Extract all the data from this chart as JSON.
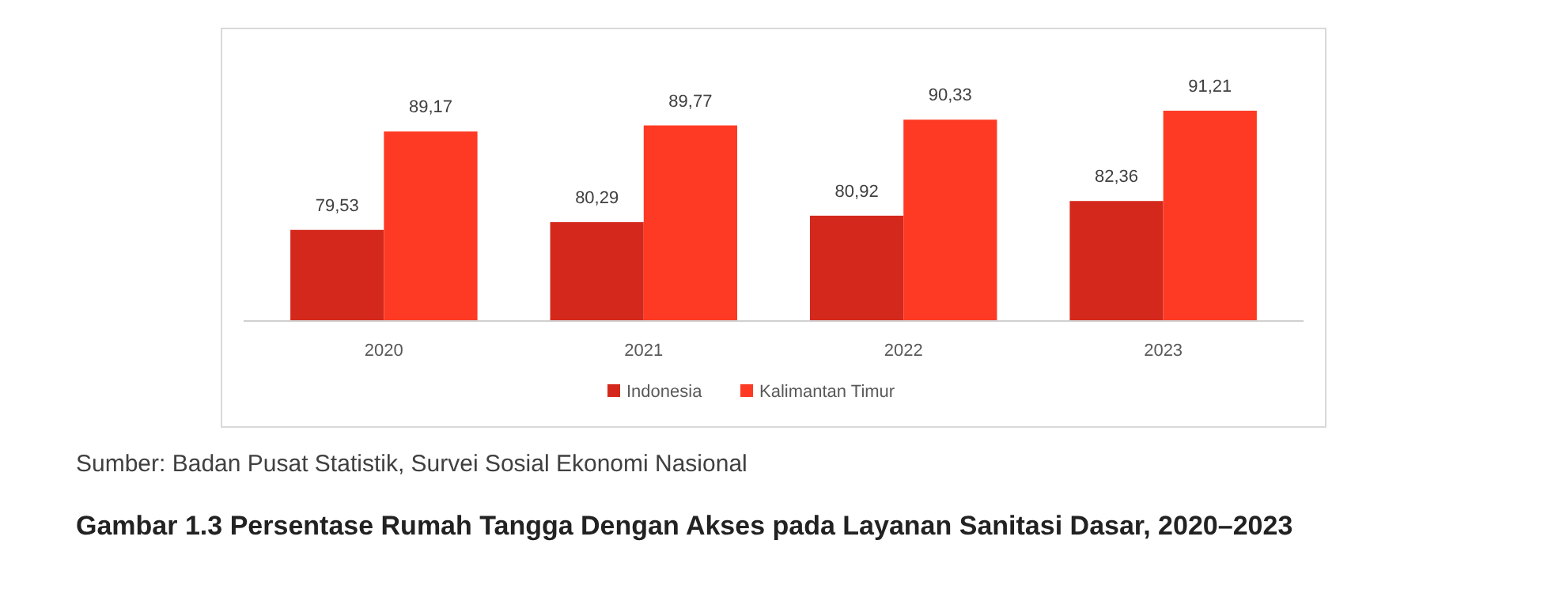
{
  "chart_data": {
    "type": "bar",
    "title": "Gambar 1.3   Persentase Rumah Tangga Dengan Akses pada Layanan Sanitasi Dasar, 2020–2023",
    "categories": [
      "2020",
      "2021",
      "2022",
      "2023"
    ],
    "series": [
      {
        "name": "Indonesia",
        "color": "#d4281c",
        "values": [
          79.53,
          80.29,
          80.92,
          82.36
        ],
        "value_labels": [
          "79,53",
          "80,29",
          "80,92",
          "82,36"
        ]
      },
      {
        "name": "Kalimantan Timur",
        "color": "#ff3a24",
        "values": [
          89.17,
          89.77,
          90.33,
          91.21
        ],
        "value_labels": [
          "89,17",
          "89,77",
          "90,33",
          "91,21"
        ]
      }
    ],
    "ylim": [
      70.6,
      91.21
    ],
    "tick_labels": "x",
    "legend": "bottom",
    "annotations": [
      "Sumber: Badan Pusat Statistik, Survei Sosial Ekonomi Nasional"
    ]
  }
}
